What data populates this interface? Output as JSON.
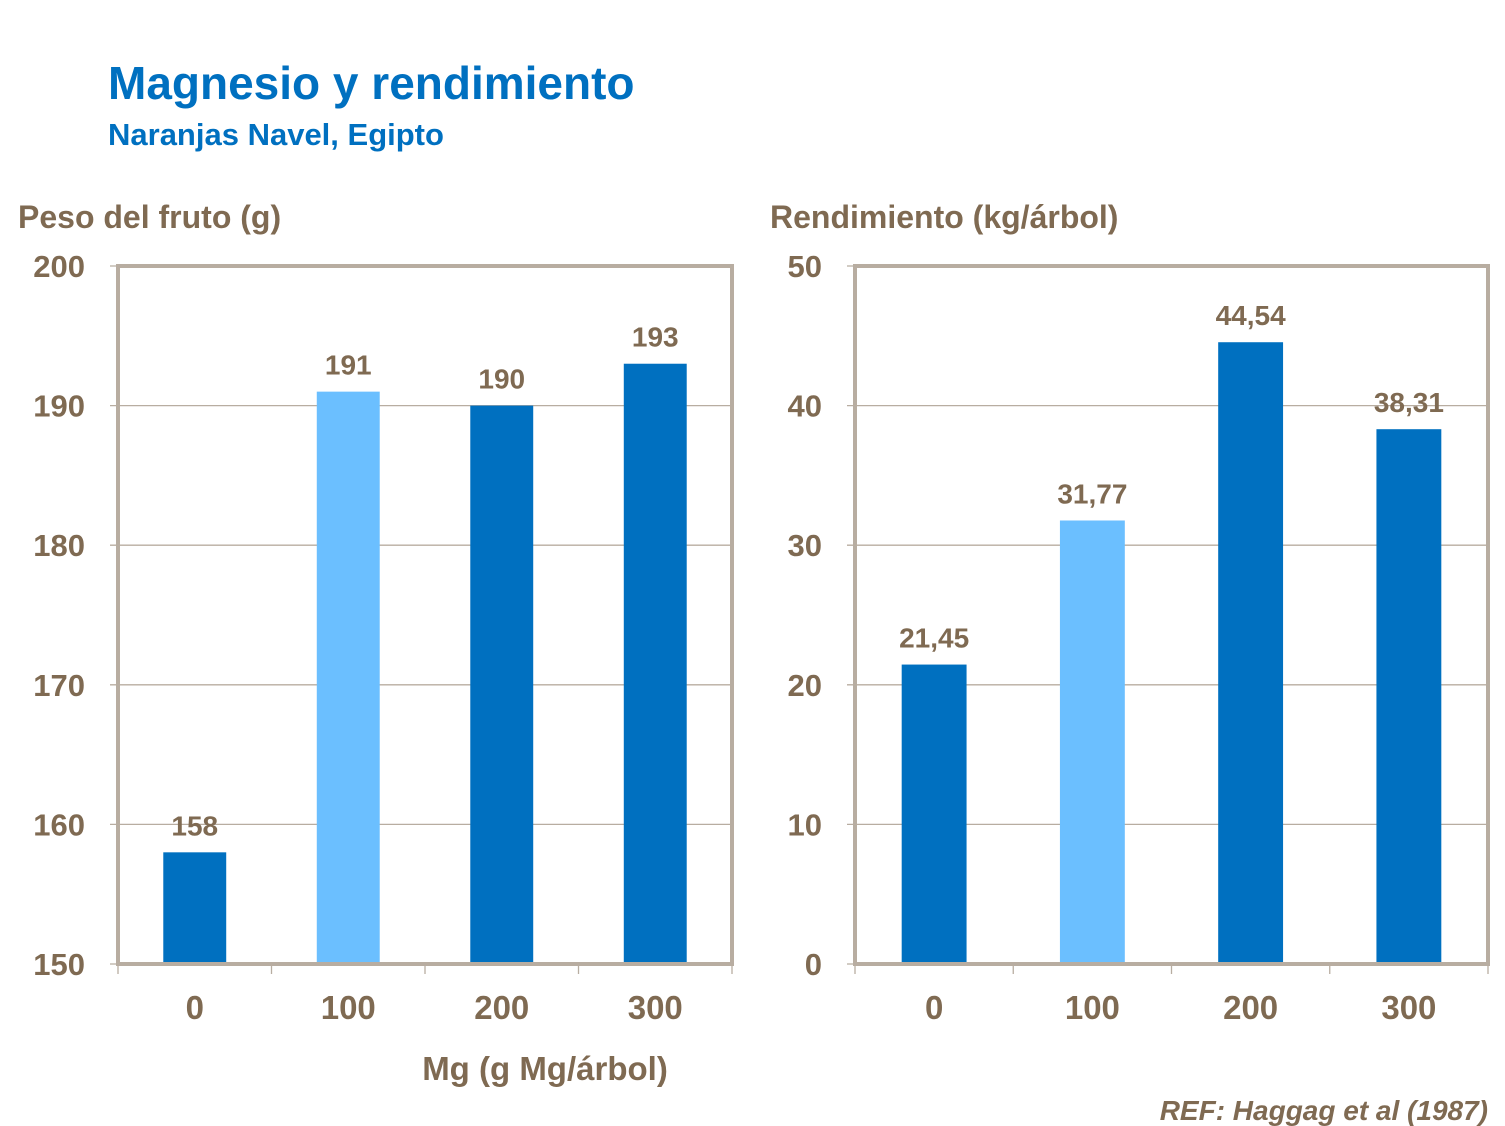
{
  "title": "Magnesio y rendimiento",
  "subtitle": "Naranjas Navel, Egipto",
  "reference": "REF: Haggag et al (1987)",
  "colors": {
    "title": "#0070C0",
    "bar_dark": "#0070C0",
    "bar_light": "#6BBFFF",
    "text": "#7F6A52",
    "axis": "#B8ADA1"
  },
  "chart_data": [
    {
      "type": "bar",
      "ylabel": "Peso del fruto (g)",
      "xlabel": "Mg (g Mg/árbol)",
      "categories": [
        "0",
        "100",
        "200",
        "300"
      ],
      "values": [
        158,
        191,
        190,
        193
      ],
      "data_labels": [
        "158",
        "191",
        "190",
        "193"
      ],
      "bar_colors": [
        "#0070C0",
        "#6BBFFF",
        "#0070C0",
        "#0070C0"
      ],
      "ylim": [
        150,
        200
      ],
      "yticks": [
        150,
        160,
        170,
        180,
        190,
        200
      ],
      "grid": true
    },
    {
      "type": "bar",
      "ylabel": "Rendimiento (kg/árbol)",
      "xlabel": "",
      "categories": [
        "0",
        "100",
        "200",
        "300"
      ],
      "values": [
        21.45,
        31.77,
        44.54,
        38.31
      ],
      "data_labels": [
        "21,45",
        "31,77",
        "44,54",
        "38,31"
      ],
      "bar_colors": [
        "#0070C0",
        "#6BBFFF",
        "#0070C0",
        "#0070C0"
      ],
      "ylim": [
        0,
        50
      ],
      "yticks": [
        0,
        10,
        20,
        30,
        40,
        50
      ],
      "grid": true
    }
  ]
}
